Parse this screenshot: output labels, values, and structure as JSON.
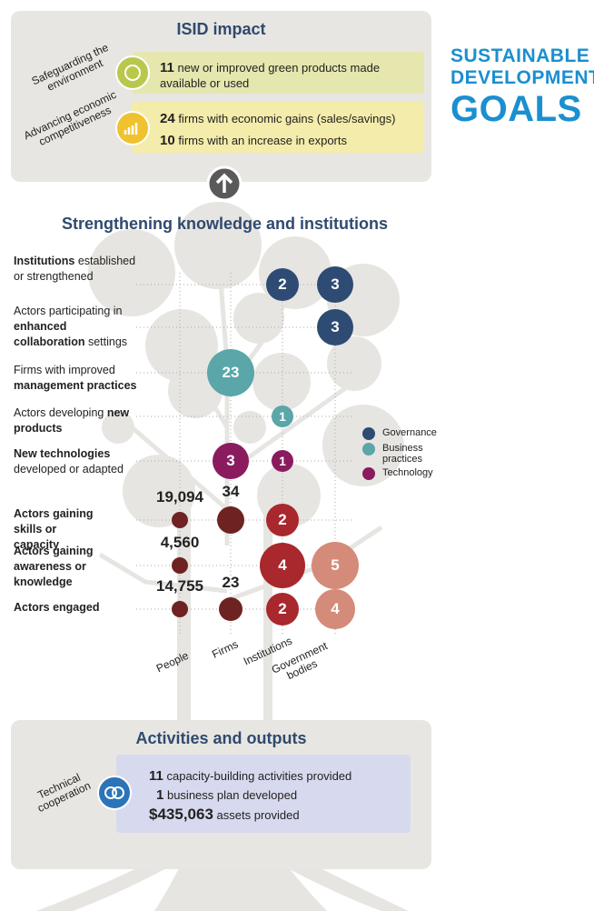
{
  "impact": {
    "title": "ISID impact",
    "rows": [
      {
        "label": "Safeguarding the environment",
        "items": [
          {
            "number": "11",
            "text": "new or improved green products made available or used"
          }
        ]
      },
      {
        "label": "Advancing economic competitiveness",
        "items": [
          {
            "number": "24",
            "text": "firms with economic gains (sales/savings)"
          },
          {
            "number": "10",
            "text": "firms with an increase in exports"
          }
        ]
      }
    ]
  },
  "logo": {
    "lines": [
      "SUSTAINABLE",
      "DEVELOPMENT",
      "GOALS"
    ]
  },
  "knowledge": {
    "title": "Strengthening knowledge and institutions",
    "columns": [
      "People",
      "Firms",
      "Institutions",
      "Government bodies"
    ],
    "legend": [
      {
        "name": "Governance",
        "color": "#2e4b73"
      },
      {
        "name": "Business practices",
        "color": "#5aa6a9"
      },
      {
        "name": "Technology",
        "color": "#8a1b5f"
      }
    ],
    "rows": [
      {
        "label": [
          {
            "text": "Institutions",
            "bold": true
          },
          {
            "text": " established or strengthened",
            "bold": false
          }
        ],
        "cells": [
          {
            "col": 2,
            "value": "2",
            "color": "#2e4b73"
          },
          {
            "col": 3,
            "value": "3",
            "color": "#2e4b73"
          }
        ]
      },
      {
        "label": [
          {
            "text": "Actors participating in ",
            "bold": false
          },
          {
            "text": "enhanced collaboration",
            "bold": true
          },
          {
            "text": " settings",
            "bold": false
          }
        ],
        "cells": [
          {
            "col": 3,
            "value": "3",
            "color": "#2e4b73"
          }
        ]
      },
      {
        "label": [
          {
            "text": "Firms with improved ",
            "bold": false
          },
          {
            "text": "management practices",
            "bold": true
          }
        ],
        "cells": [
          {
            "col": 1,
            "value": "23",
            "color": "#5aa6a9"
          }
        ]
      },
      {
        "label": [
          {
            "text": "Actors developing ",
            "bold": false
          },
          {
            "text": "new products",
            "bold": true
          }
        ],
        "cells": [
          {
            "col": 2,
            "value": "1",
            "color": "#5aa6a9"
          }
        ]
      },
      {
        "label": [
          {
            "text": "New technologies",
            "bold": true
          },
          {
            "text": " developed or adapted",
            "bold": false
          }
        ],
        "cells": [
          {
            "col": 1,
            "value": "3",
            "color": "#8a1b5f"
          },
          {
            "col": 2,
            "value": "1",
            "color": "#8a1b5f"
          }
        ]
      },
      {
        "label": [
          {
            "text": "Actors gaining skills or capacity",
            "bold": true
          }
        ],
        "cells": [
          {
            "col": 0,
            "value": "19,094",
            "color": "#6e2322",
            "outside": true
          },
          {
            "col": 1,
            "value": "34",
            "color": "#6e2322",
            "outside": true
          },
          {
            "col": 2,
            "value": "2",
            "color": "#a8282d"
          }
        ]
      },
      {
        "label": [
          {
            "text": "Actors gaining awareness or knowledge",
            "bold": true
          }
        ],
        "cells": [
          {
            "col": 0,
            "value": "4,560",
            "color": "#6e2322",
            "outside": true
          },
          {
            "col": 2,
            "value": "4",
            "color": "#a8282d"
          },
          {
            "col": 3,
            "value": "5",
            "color": "#d58b79"
          }
        ]
      },
      {
        "label": [
          {
            "text": "Actors engaged",
            "bold": true
          }
        ],
        "cells": [
          {
            "col": 0,
            "value": "14,755",
            "color": "#6e2322",
            "outside": true
          },
          {
            "col": 1,
            "value": "23",
            "color": "#6e2322",
            "outside": true
          },
          {
            "col": 2,
            "value": "2",
            "color": "#a8282d"
          },
          {
            "col": 3,
            "value": "4",
            "color": "#d58b79"
          }
        ]
      }
    ]
  },
  "activities": {
    "title": "Activities and outputs",
    "label": "Technical cooperation",
    "items": [
      {
        "number": "11",
        "text": "capacity-building activities provided"
      },
      {
        "number": "1",
        "text": "business plan developed"
      },
      {
        "number": "$435,063",
        "text": "assets provided"
      }
    ]
  }
}
